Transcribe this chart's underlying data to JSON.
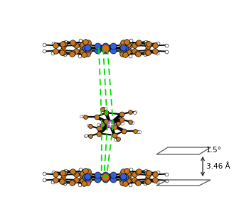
{
  "bg_color": "#ffffff",
  "inset_angle_text": "1.5°",
  "inset_dist_text": "3.46 Å",
  "atom_colors": {
    "C": "#c87820",
    "N": "#3060e0",
    "Fe": "#e06818",
    "Cr": "#c070c0",
    "H": "#ffffff"
  },
  "bond_color": "#0a0a0a",
  "dashed_color": "#00dd00",
  "figure_width": 3.36,
  "figure_height": 3.05,
  "dpi": 100
}
